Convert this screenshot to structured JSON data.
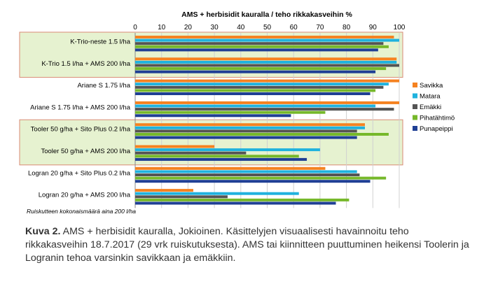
{
  "chart_data": {
    "type": "bar",
    "orientation": "horizontal",
    "title": "AMS + herbisidit kauralla / teho rikkakasveihin %",
    "xlim": [
      0,
      100
    ],
    "xticks": [
      "0",
      "10",
      "20",
      "30",
      "40",
      "50",
      "60",
      "70",
      "80",
      "90",
      "100"
    ],
    "grid": true,
    "legend_position": "right",
    "categories": [
      "K-Trio-neste 1.5 l/ha",
      "K-Trio 1.5 l/ha + AMS 200 l/ha",
      "Ariane S 1.75 l/ha",
      "Ariane S 1.75 l/ha + AMS 200 l/ha",
      "Tooler 50 g/ha + Sito Plus 0.2 l/ha",
      "Tooler 50 g/ha + AMS 200 l/ha",
      "Logran 20 g/ha + Sito Plus 0.2 l/ha",
      "Logran 20 g/ha + AMS 200 l/ha"
    ],
    "series": [
      {
        "name": "Savikka",
        "color": "#f58220",
        "values": [
          98,
          99,
          100,
          100,
          87,
          30,
          72,
          22
        ]
      },
      {
        "name": "Matara",
        "color": "#1fb2de",
        "values": [
          100,
          99,
          96,
          91,
          87,
          70,
          84,
          62
        ]
      },
      {
        "name": "Emäkki",
        "color": "#545454",
        "values": [
          94,
          100,
          94,
          98,
          84,
          42,
          85,
          35
        ]
      },
      {
        "name": "Pihatähtimö",
        "color": "#76b82a",
        "values": [
          96,
          95,
          91,
          72,
          96,
          62,
          95,
          81
        ]
      },
      {
        "name": "Punapeippi",
        "color": "#1f3f94",
        "values": [
          92,
          91,
          89,
          59,
          84,
          65,
          89,
          76
        ]
      }
    ],
    "highlight_groups": [
      [
        0,
        1
      ],
      [
        4,
        5
      ]
    ],
    "footnote": "Ruiskutteen kokonaismäärä aina 200 l/ha"
  },
  "caption": {
    "label": "Kuva 2.",
    "text": " AMS + herbisidit kauralla, Jokioinen. Käsittelyjen visuaalisesti havainnoitu teho rikkakasveihin 18.7.2017 (29 vrk ruiskutuksesta).  AMS tai kiinnitteen puuttuminen heikensi Toolerin ja Logranin tehoa varsinkin savikkaan ja emäkkiin."
  }
}
